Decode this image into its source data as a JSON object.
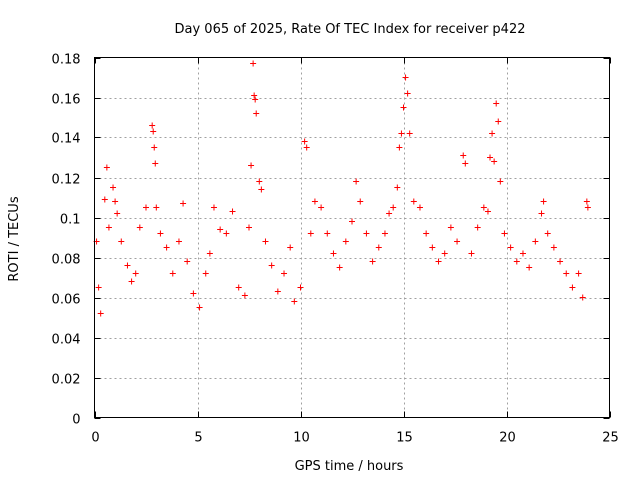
{
  "chart_data": {
    "type": "scatter",
    "title": "Day 065 of 2025, Rate Of TEC Index for receiver p422",
    "xlabel": "GPS time / hours",
    "ylabel": "ROTI / TECUs",
    "xlim": [
      0,
      25
    ],
    "ylim": [
      0,
      0.18
    ],
    "x_ticks": [
      "0",
      "5",
      "10",
      "15",
      "20",
      "25"
    ],
    "y_ticks": [
      "0",
      "0.02",
      "0.04",
      "0.06",
      "0.08",
      "0.1",
      "0.12",
      "0.14",
      "0.16",
      "0.18"
    ],
    "grid": true,
    "marker": "+",
    "color": "#ff0000",
    "series": [
      {
        "name": "p422",
        "points": [
          [
            0.1,
            0.088
          ],
          [
            0.2,
            0.065
          ],
          [
            0.3,
            0.052
          ],
          [
            0.5,
            0.109
          ],
          [
            0.6,
            0.125
          ],
          [
            0.7,
            0.095
          ],
          [
            0.9,
            0.115
          ],
          [
            1.0,
            0.108
          ],
          [
            1.1,
            0.102
          ],
          [
            1.3,
            0.088
          ],
          [
            1.6,
            0.076
          ],
          [
            1.8,
            0.068
          ],
          [
            2.0,
            0.072
          ],
          [
            2.2,
            0.095
          ],
          [
            2.5,
            0.105
          ],
          [
            2.8,
            0.146
          ],
          [
            2.85,
            0.143
          ],
          [
            2.9,
            0.135
          ],
          [
            2.95,
            0.127
          ],
          [
            3.0,
            0.105
          ],
          [
            3.2,
            0.092
          ],
          [
            3.5,
            0.085
          ],
          [
            3.8,
            0.072
          ],
          [
            4.1,
            0.088
          ],
          [
            4.3,
            0.107
          ],
          [
            4.5,
            0.078
          ],
          [
            4.8,
            0.062
          ],
          [
            5.1,
            0.055
          ],
          [
            5.4,
            0.072
          ],
          [
            5.6,
            0.082
          ],
          [
            5.8,
            0.105
          ],
          [
            6.1,
            0.094
          ],
          [
            6.4,
            0.092
          ],
          [
            6.7,
            0.103
          ],
          [
            7.0,
            0.065
          ],
          [
            7.3,
            0.061
          ],
          [
            7.5,
            0.095
          ],
          [
            7.6,
            0.126
          ],
          [
            7.7,
            0.177
          ],
          [
            7.75,
            0.161
          ],
          [
            7.8,
            0.159
          ],
          [
            7.85,
            0.152
          ],
          [
            8.0,
            0.118
          ],
          [
            8.1,
            0.114
          ],
          [
            8.3,
            0.088
          ],
          [
            8.6,
            0.076
          ],
          [
            8.9,
            0.063
          ],
          [
            9.2,
            0.072
          ],
          [
            9.5,
            0.085
          ],
          [
            9.7,
            0.058
          ],
          [
            10.0,
            0.065
          ],
          [
            10.2,
            0.138
          ],
          [
            10.3,
            0.135
          ],
          [
            10.5,
            0.092
          ],
          [
            10.7,
            0.108
          ],
          [
            11.0,
            0.105
          ],
          [
            11.3,
            0.092
          ],
          [
            11.6,
            0.082
          ],
          [
            11.9,
            0.075
          ],
          [
            12.2,
            0.088
          ],
          [
            12.5,
            0.098
          ],
          [
            12.7,
            0.118
          ],
          [
            12.9,
            0.108
          ],
          [
            13.2,
            0.092
          ],
          [
            13.5,
            0.078
          ],
          [
            13.8,
            0.085
          ],
          [
            14.1,
            0.092
          ],
          [
            14.3,
            0.102
          ],
          [
            14.5,
            0.105
          ],
          [
            14.7,
            0.115
          ],
          [
            14.8,
            0.135
          ],
          [
            14.9,
            0.142
          ],
          [
            15.0,
            0.155
          ],
          [
            15.1,
            0.17
          ],
          [
            15.2,
            0.162
          ],
          [
            15.3,
            0.142
          ],
          [
            15.5,
            0.108
          ],
          [
            15.8,
            0.105
          ],
          [
            16.1,
            0.092
          ],
          [
            16.4,
            0.085
          ],
          [
            16.7,
            0.078
          ],
          [
            17.0,
            0.082
          ],
          [
            17.3,
            0.095
          ],
          [
            17.6,
            0.088
          ],
          [
            17.9,
            0.131
          ],
          [
            18.0,
            0.127
          ],
          [
            18.3,
            0.082
          ],
          [
            18.6,
            0.095
          ],
          [
            18.9,
            0.105
          ],
          [
            19.1,
            0.103
          ],
          [
            19.2,
            0.13
          ],
          [
            19.3,
            0.142
          ],
          [
            19.4,
            0.128
          ],
          [
            19.5,
            0.157
          ],
          [
            19.6,
            0.148
          ],
          [
            19.7,
            0.118
          ],
          [
            19.9,
            0.092
          ],
          [
            20.2,
            0.085
          ],
          [
            20.5,
            0.078
          ],
          [
            20.8,
            0.082
          ],
          [
            21.1,
            0.075
          ],
          [
            21.4,
            0.088
          ],
          [
            21.7,
            0.102
          ],
          [
            21.8,
            0.108
          ],
          [
            22.0,
            0.092
          ],
          [
            22.3,
            0.085
          ],
          [
            22.6,
            0.078
          ],
          [
            22.9,
            0.072
          ],
          [
            23.2,
            0.065
          ],
          [
            23.5,
            0.072
          ],
          [
            23.7,
            0.06
          ],
          [
            23.9,
            0.108
          ],
          [
            23.95,
            0.105
          ]
        ]
      }
    ]
  }
}
